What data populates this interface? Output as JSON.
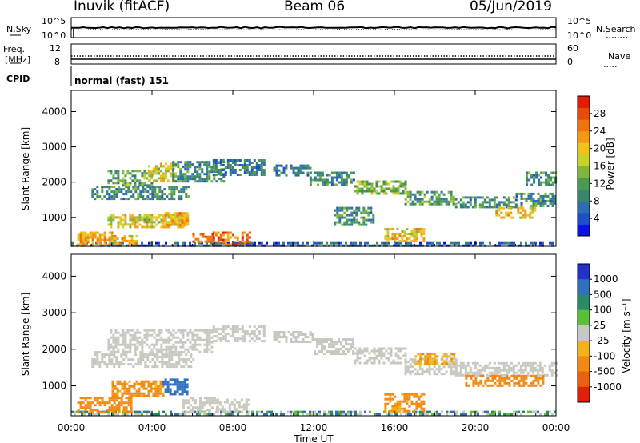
{
  "header": {
    "station": "Inuvik (fitACF)",
    "beam": "Beam 06",
    "date": "05/Jun/2019"
  },
  "nsky_panel": {
    "left_label": "N.Sky",
    "left_ticks": [
      "10^5",
      "10^0"
    ],
    "right_ticks": [
      "10^5",
      "10^0"
    ],
    "right_label": "N.Search"
  },
  "freq_panel": {
    "left_label_1": "Freq.",
    "left_label_2": "[MHz]",
    "left_ticks": [
      "12",
      "8"
    ],
    "right_ticks": [
      "60",
      "0"
    ],
    "right_label": "Nave"
  },
  "cpid": {
    "label": "CPID",
    "value": "normal (fast) 151"
  },
  "time_axis": {
    "ticks": [
      "00:00",
      "04:00",
      "08:00",
      "12:00",
      "16:00",
      "20:00",
      "00:00"
    ],
    "title": "Time UT"
  },
  "chart_data": [
    {
      "type": "heatmap",
      "name": "power",
      "ylabel": "Slant Range [km]",
      "yticks": [
        "4000",
        "3000",
        "2000",
        "1000"
      ],
      "ylim": [
        180,
        4600
      ],
      "xlim_hours": [
        0,
        24
      ],
      "colorbar_label": "Power [dB]",
      "colorbar_ticks": [
        "28",
        "24",
        "20",
        "16",
        "12",
        "8",
        "4"
      ],
      "colorbar_range_db": [
        0,
        32
      ],
      "colors": [
        "#0b12e8",
        "#1f4fc6",
        "#2f6db2",
        "#38876c",
        "#4c9a52",
        "#7fb73d",
        "#c9d12b",
        "#f2c21a",
        "#f49a12",
        "#f0740c",
        "#ea4a0a",
        "#e01c05"
      ],
      "echo_regions": [
        {
          "t": [
            0.0,
            24.0
          ],
          "r": [
            200,
            300
          ],
          "power_db": 6
        },
        {
          "t": [
            0.3,
            2.2
          ],
          "r": [
            250,
            600
          ],
          "power_db": 22
        },
        {
          "t": [
            2.0,
            3.2
          ],
          "r": [
            250,
            500
          ],
          "power_db": 20
        },
        {
          "t": [
            1.0,
            5.8
          ],
          "r": [
            1500,
            1900
          ],
          "power_db": 10
        },
        {
          "t": [
            1.8,
            4.0
          ],
          "r": [
            1900,
            2350
          ],
          "power_db": 12
        },
        {
          "t": [
            3.8,
            5.2
          ],
          "r": [
            2050,
            2550
          ],
          "power_db": 18
        },
        {
          "t": [
            5.0,
            7.5
          ],
          "r": [
            2000,
            2600
          ],
          "power_db": 10
        },
        {
          "t": [
            7.0,
            9.5
          ],
          "r": [
            2200,
            2650
          ],
          "power_db": 8
        },
        {
          "t": [
            1.8,
            5.8
          ],
          "r": [
            750,
            1100
          ],
          "power_db": 18
        },
        {
          "t": [
            4.5,
            5.8
          ],
          "r": [
            800,
            1150
          ],
          "power_db": 22
        },
        {
          "t": [
            6.0,
            7.0
          ],
          "r": [
            300,
            550
          ],
          "power_db": 26
        },
        {
          "t": [
            7.0,
            8.8
          ],
          "r": [
            250,
            600
          ],
          "power_db": 26
        },
        {
          "t": [
            10.0,
            11.8
          ],
          "r": [
            2200,
            2500
          ],
          "power_db": 8
        },
        {
          "t": [
            11.8,
            14.0
          ],
          "r": [
            1900,
            2300
          ],
          "power_db": 10
        },
        {
          "t": [
            14.0,
            16.5
          ],
          "r": [
            1650,
            2050
          ],
          "power_db": 14
        },
        {
          "t": [
            16.5,
            19.0
          ],
          "r": [
            1350,
            1750
          ],
          "power_db": 12
        },
        {
          "t": [
            19.0,
            22.0
          ],
          "r": [
            1300,
            1600
          ],
          "power_db": 10
        },
        {
          "t": [
            22.0,
            24.0
          ],
          "r": [
            1350,
            1700
          ],
          "power_db": 10
        },
        {
          "t": [
            21.0,
            23.0
          ],
          "r": [
            1000,
            1300
          ],
          "power_db": 20
        },
        {
          "t": [
            15.5,
            17.5
          ],
          "r": [
            300,
            700
          ],
          "power_db": 20
        },
        {
          "t": [
            13.0,
            15.0
          ],
          "r": [
            800,
            1300
          ],
          "power_db": 10
        },
        {
          "t": [
            22.5,
            24.0
          ],
          "r": [
            1900,
            2300
          ],
          "power_db": 10
        }
      ]
    },
    {
      "type": "heatmap",
      "name": "velocity",
      "ylabel": "Slant Range [km]",
      "yticks": [
        "4000",
        "3000",
        "2000",
        "1000"
      ],
      "ylim": [
        180,
        4600
      ],
      "xlim_hours": [
        0,
        24
      ],
      "colorbar_label": "Velocity [m s⁻¹]",
      "colorbar_ticks": [
        "1000",
        "500",
        "100",
        "25",
        "-25",
        "-100",
        "-500",
        "-1000"
      ],
      "colors": [
        "#2232c8",
        "#3070c0",
        "#2a8a68",
        "#5abf3a",
        "#c8c8c0",
        "#f2b21a",
        "#f08a12",
        "#ec6010",
        "#e02008"
      ],
      "echo_regions": [
        {
          "t": [
            0.0,
            24.0
          ],
          "r": [
            200,
            320
          ],
          "velocity": 60
        },
        {
          "t": [
            0.3,
            3.0
          ],
          "r": [
            250,
            700
          ],
          "velocity": -200
        },
        {
          "t": [
            1.0,
            6.0
          ],
          "r": [
            1500,
            1950
          ],
          "velocity": 0
        },
        {
          "t": [
            1.8,
            7.0
          ],
          "r": [
            1950,
            2550
          ],
          "velocity": 0
        },
        {
          "t": [
            7.0,
            9.5
          ],
          "r": [
            2200,
            2650
          ],
          "velocity": 0
        },
        {
          "t": [
            2.0,
            4.5
          ],
          "r": [
            750,
            1150
          ],
          "velocity": -150
        },
        {
          "t": [
            4.5,
            5.8
          ],
          "r": [
            750,
            1200
          ],
          "velocity": 200
        },
        {
          "t": [
            5.5,
            7.2
          ],
          "r": [
            300,
            700
          ],
          "velocity": 0
        },
        {
          "t": [
            7.2,
            8.8
          ],
          "r": [
            300,
            650
          ],
          "velocity": 0
        },
        {
          "t": [
            10.0,
            12.0
          ],
          "r": [
            2200,
            2500
          ],
          "velocity": 0
        },
        {
          "t": [
            12.0,
            14.0
          ],
          "r": [
            1900,
            2300
          ],
          "velocity": 0
        },
        {
          "t": [
            14.0,
            16.5
          ],
          "r": [
            1650,
            2050
          ],
          "velocity": 0
        },
        {
          "t": [
            16.5,
            19.0
          ],
          "r": [
            1350,
            1750
          ],
          "velocity": 0
        },
        {
          "t": [
            19.0,
            24.0
          ],
          "r": [
            1300,
            1650
          ],
          "velocity": 0
        },
        {
          "t": [
            19.5,
            23.5
          ],
          "r": [
            1000,
            1300
          ],
          "velocity": -200
        },
        {
          "t": [
            15.5,
            17.5
          ],
          "r": [
            300,
            800
          ],
          "velocity": -150
        },
        {
          "t": [
            17.0,
            19.0
          ],
          "r": [
            1600,
            1900
          ],
          "velocity": -80
        }
      ]
    }
  ]
}
